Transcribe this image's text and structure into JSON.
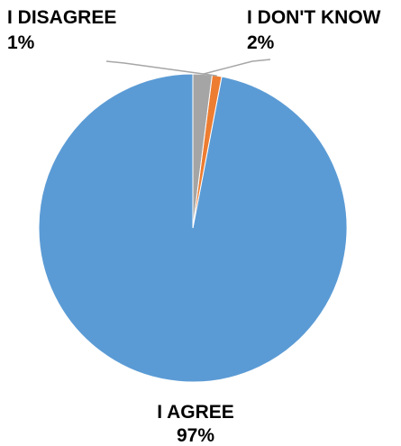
{
  "chart_data": {
    "type": "pie",
    "title": "",
    "categories": [
      "I AGREE",
      "I DISAGREE",
      "I DON'T KNOW"
    ],
    "values": [
      97,
      1,
      2
    ],
    "value_labels": [
      "97%",
      "1%",
      "2%"
    ],
    "colors": [
      "#5b9bd5",
      "#ed7d31",
      "#a5a5a5"
    ],
    "start_angle_deg": 0,
    "direction": "counterclockwise",
    "legend": "none",
    "leader_line_color": "#a6a6a6"
  }
}
